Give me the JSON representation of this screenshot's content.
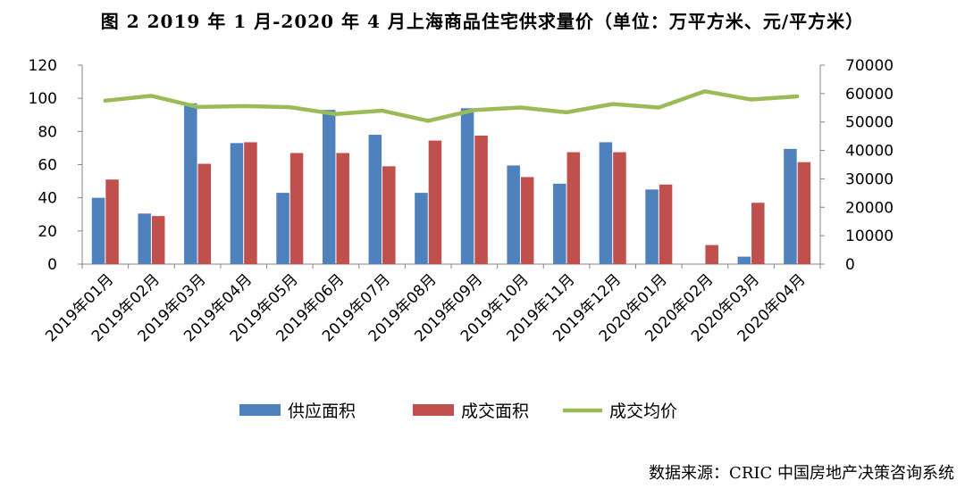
{
  "title": "图 2 2019 年 1 月-2020 年 4 月上海商品住宅供求量价（单位：万平方米、元/平方米）",
  "source": "数据来源：CRIC 中国房地产决策咨询系统",
  "chart_data": {
    "type": "bar",
    "categories": [
      "2019年01月",
      "2019年02月",
      "2019年03月",
      "2019年04月",
      "2019年05月",
      "2019年06月",
      "2019年07月",
      "2019年08月",
      "2019年09月",
      "2019年10月",
      "2019年11月",
      "2019年12月",
      "2020年01月",
      "2020年02月",
      "2020年03月",
      "2020年04月"
    ],
    "series": [
      {
        "name": "供应面积",
        "type": "bar",
        "axis": "left",
        "color": "#4F81BD",
        "values": [
          40,
          30.5,
          97,
          73,
          43,
          93,
          78,
          43,
          94,
          59.5,
          48.5,
          73.5,
          45,
          0,
          4.5,
          69.5
        ]
      },
      {
        "name": "成交面积",
        "type": "bar",
        "axis": "left",
        "color": "#C0504D",
        "values": [
          51,
          29,
          60.5,
          73.5,
          67,
          67,
          59,
          74.5,
          77.5,
          52.5,
          67.5,
          67.5,
          48,
          11.5,
          37,
          61.5
        ]
      },
      {
        "name": "成交均价",
        "type": "line",
        "axis": "right",
        "color": "#9BBB59",
        "values": [
          57500,
          59200,
          55300,
          55600,
          55200,
          52800,
          54000,
          50400,
          54200,
          55100,
          53400,
          56300,
          55100,
          60800,
          57900,
          59000
        ]
      }
    ],
    "ylim_left": [
      0,
      120
    ],
    "yticks_left": [
      0,
      20,
      40,
      60,
      80,
      100,
      120
    ],
    "ylim_right": [
      0,
      70000
    ],
    "yticks_right": [
      0,
      10000,
      20000,
      30000,
      40000,
      50000,
      60000,
      70000
    ],
    "grid": false,
    "legend": "bottom"
  }
}
